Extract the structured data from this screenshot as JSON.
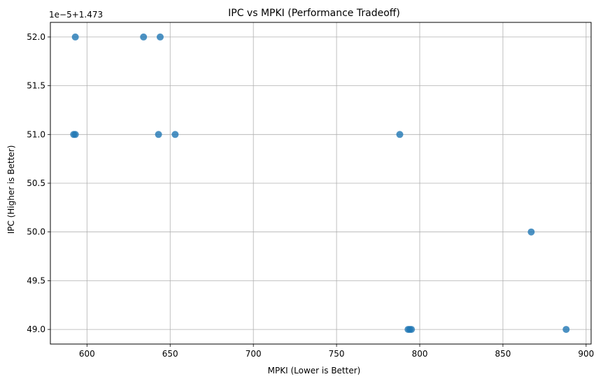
{
  "chart_data": {
    "type": "scatter",
    "title": "IPC vs MPKI (Performance Tradeoff)",
    "xlabel": "MPKI (Lower is Better)",
    "ylabel": "IPC (Higher is Better)",
    "offset_text": "1e−5+1.473",
    "xlim": [
      578,
      903
    ],
    "ylim": [
      48.85,
      52.15
    ],
    "xticks": [
      600,
      650,
      700,
      750,
      800,
      850,
      900
    ],
    "xtick_labels": [
      "600",
      "650",
      "700",
      "750",
      "800",
      "850",
      "900"
    ],
    "yticks": [
      49.0,
      49.5,
      50.0,
      50.5,
      51.0,
      51.5,
      52.0
    ],
    "ytick_labels": [
      "49.0",
      "49.5",
      "50.0",
      "50.5",
      "51.0",
      "51.5",
      "52.0"
    ],
    "grid": true,
    "color": "#1f77b4",
    "points": [
      {
        "x": 593,
        "y": 52.0
      },
      {
        "x": 634,
        "y": 52.0
      },
      {
        "x": 644,
        "y": 52.0
      },
      {
        "x": 592,
        "y": 51.0
      },
      {
        "x": 593,
        "y": 51.0
      },
      {
        "x": 643,
        "y": 51.0
      },
      {
        "x": 653,
        "y": 51.0
      },
      {
        "x": 788,
        "y": 51.0
      },
      {
        "x": 867,
        "y": 50.0
      },
      {
        "x": 793,
        "y": 49.0
      },
      {
        "x": 794,
        "y": 49.0
      },
      {
        "x": 795,
        "y": 49.0
      },
      {
        "x": 888,
        "y": 49.0
      }
    ]
  }
}
